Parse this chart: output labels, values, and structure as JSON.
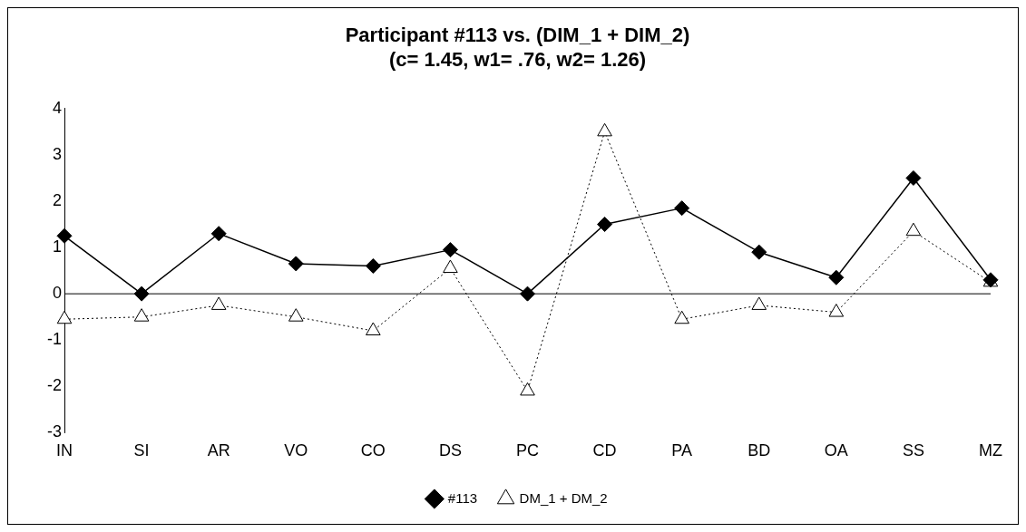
{
  "chart_data": {
    "type": "line",
    "title": [
      "Participant #113 vs. (DIM_1 + DIM_2)",
      "(c= 1.45, w1= .76, w2= 1.26)"
    ],
    "categories": [
      "IN",
      "SI",
      "AR",
      "VO",
      "CO",
      "DS",
      "PC",
      "CD",
      "PA",
      "BD",
      "OA",
      "SS",
      "MZ"
    ],
    "series": [
      {
        "name": "#113",
        "color": "#000000",
        "marker": "diamond",
        "line_style": "solid",
        "values": [
          1.25,
          0,
          1.3,
          0.65,
          0.6,
          0.95,
          0,
          1.5,
          1.85,
          0.9,
          0.35,
          2.5,
          0.3
        ]
      },
      {
        "name": "DM_1 + DM_2",
        "color": "#000000",
        "marker": "triangle",
        "line_style": "dotted",
        "values": [
          -0.55,
          -0.5,
          -0.25,
          -0.5,
          -0.8,
          0.55,
          -2.1,
          3.5,
          -0.55,
          -0.25,
          -0.4,
          1.35,
          0.25
        ]
      }
    ],
    "ref_lines": [
      {
        "axis": "y",
        "value": 0,
        "color": "#000000"
      }
    ],
    "ylim": [
      -3,
      4
    ],
    "yticks": [
      -3,
      -2,
      -1,
      0,
      1,
      2,
      3,
      4
    ],
    "grid": false,
    "legend": "bottom"
  }
}
